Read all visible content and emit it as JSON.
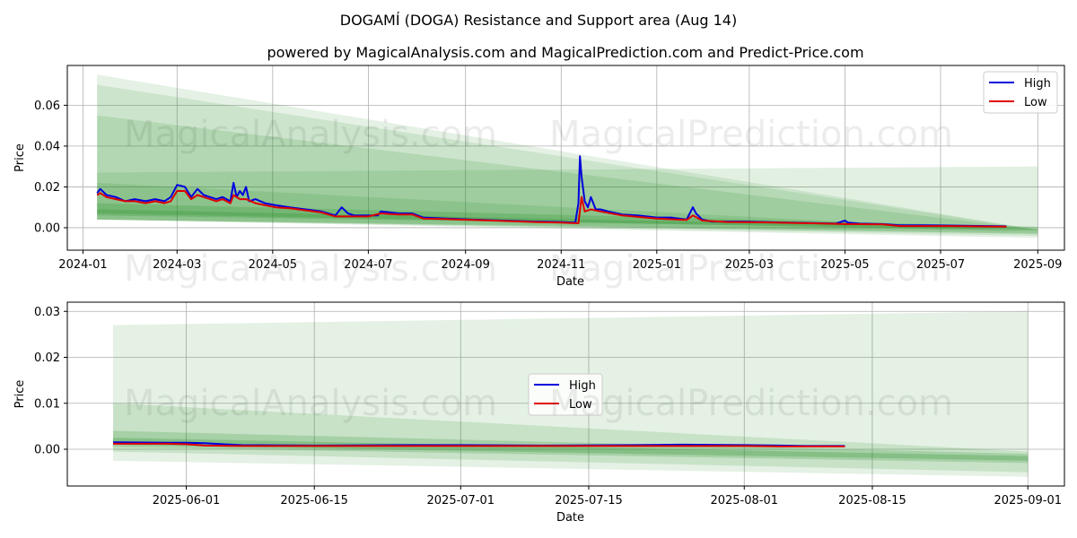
{
  "title": "DOGAMÍ (DOGA) Resistance and Support area (Aug 14)",
  "subtitle": "powered by MagicalAnalysis.com and MagicalPrediction.com and Predict-Price.com",
  "watermarks": [
    "MagicalAnalysis.com",
    "MagicalPrediction.com"
  ],
  "colors": {
    "high": "#0000dd",
    "low": "#dd0000",
    "band": "#228b22",
    "grid": "#b0b0b0"
  },
  "chart_data": [
    {
      "type": "line",
      "xlabel": "Date",
      "ylabel": "Price",
      "xlim": [
        "2023-12-22",
        "2025-09-18"
      ],
      "ylim": [
        -0.011,
        0.0795
      ],
      "grid": true,
      "legend": "top-right",
      "xticks": [
        "2024-01-01",
        "2024-03-01",
        "2024-05-01",
        "2024-07-01",
        "2024-09-01",
        "2024-11-01",
        "2025-01-01",
        "2025-03-01",
        "2025-05-01",
        "2025-07-01",
        "2025-09-01"
      ],
      "xticklabels": [
        "2024-01",
        "2024-03",
        "2024-05",
        "2024-07",
        "2024-09",
        "2024-11",
        "2025-01",
        "2025-03",
        "2025-05",
        "2025-07",
        "2025-09"
      ],
      "yticks": [
        0.0,
        0.02,
        0.04,
        0.06
      ],
      "yticklabels": [
        "0.00",
        "0.02",
        "0.04",
        "0.06"
      ],
      "bands": [
        {
          "x": [
            "2024-01-10",
            "2025-09-01"
          ],
          "upper": [
            0.075,
            -0.001
          ],
          "lower": [
            0.004,
            -0.004
          ],
          "opacity": 0.12
        },
        {
          "x": [
            "2024-01-10",
            "2025-09-01"
          ],
          "upper": [
            0.07,
            -0.001
          ],
          "lower": [
            0.004,
            -0.005
          ],
          "opacity": 0.12
        },
        {
          "x": [
            "2024-01-10",
            "2025-09-01"
          ],
          "upper": [
            0.055,
            -0.001
          ],
          "lower": [
            0.004,
            -0.003
          ],
          "opacity": 0.15
        },
        {
          "x": [
            "2024-01-10",
            "2025-09-01"
          ],
          "upper": [
            0.027,
            0.03
          ],
          "lower": [
            0.004,
            -0.002
          ],
          "opacity": 0.13
        },
        {
          "x": [
            "2024-01-10",
            "2025-09-01"
          ],
          "upper": [
            0.022,
            -0.002
          ],
          "lower": [
            0.004,
            -0.003
          ],
          "opacity": 0.15
        },
        {
          "x": [
            "2024-01-10",
            "2025-09-01"
          ],
          "upper": [
            0.012,
            0.0005
          ],
          "lower": [
            0.006,
            -0.001
          ],
          "opacity": 0.22
        },
        {
          "x": [
            "2024-01-10",
            "2025-09-01"
          ],
          "upper": [
            0.009,
            -0.0005
          ],
          "lower": [
            0.007,
            -0.0015
          ],
          "opacity": 0.25
        }
      ],
      "series": [
        {
          "name": "High",
          "x": [
            "2024-01-10",
            "2024-01-12",
            "2024-01-16",
            "2024-01-22",
            "2024-01-28",
            "2024-02-03",
            "2024-02-10",
            "2024-02-16",
            "2024-02-22",
            "2024-02-26",
            "2024-03-01",
            "2024-03-06",
            "2024-03-10",
            "2024-03-14",
            "2024-03-18",
            "2024-03-22",
            "2024-03-26",
            "2024-03-30",
            "2024-04-04",
            "2024-04-06",
            "2024-04-08",
            "2024-04-10",
            "2024-04-12",
            "2024-04-14",
            "2024-04-16",
            "2024-04-20",
            "2024-04-26",
            "2024-05-03",
            "2024-05-12",
            "2024-05-22",
            "2024-06-01",
            "2024-06-10",
            "2024-06-14",
            "2024-06-18",
            "2024-06-22",
            "2024-07-01",
            "2024-07-07",
            "2024-07-09",
            "2024-07-20",
            "2024-07-29",
            "2024-08-05",
            "2024-08-20",
            "2024-09-05",
            "2024-09-25",
            "2024-10-15",
            "2024-11-01",
            "2024-11-10",
            "2024-11-12",
            "2024-11-13",
            "2024-11-14",
            "2024-11-16",
            "2024-11-18",
            "2024-11-20",
            "2024-11-23",
            "2024-11-26",
            "2024-12-01",
            "2024-12-10",
            "2024-12-20",
            "2025-01-01",
            "2025-01-10",
            "2025-01-20",
            "2025-01-24",
            "2025-01-26",
            "2025-01-30",
            "2025-02-05",
            "2025-02-15",
            "2025-02-25",
            "2025-03-10",
            "2025-03-25",
            "2025-04-10",
            "2025-04-25",
            "2025-05-01",
            "2025-05-03",
            "2025-05-10",
            "2025-05-25",
            "2025-06-05",
            "2025-06-20",
            "2025-07-05",
            "2025-07-20",
            "2025-08-01",
            "2025-08-12"
          ],
          "y": [
            0.017,
            0.019,
            0.016,
            0.015,
            0.013,
            0.014,
            0.013,
            0.014,
            0.013,
            0.015,
            0.021,
            0.02,
            0.015,
            0.019,
            0.016,
            0.015,
            0.014,
            0.015,
            0.013,
            0.022,
            0.015,
            0.018,
            0.016,
            0.02,
            0.013,
            0.014,
            0.012,
            0.011,
            0.01,
            0.009,
            0.008,
            0.006,
            0.01,
            0.007,
            0.006,
            0.006,
            0.006,
            0.008,
            0.007,
            0.007,
            0.005,
            0.0045,
            0.004,
            0.0035,
            0.003,
            0.0028,
            0.0025,
            0.012,
            0.035,
            0.025,
            0.013,
            0.01,
            0.015,
            0.009,
            0.009,
            0.008,
            0.0065,
            0.006,
            0.005,
            0.005,
            0.004,
            0.01,
            0.007,
            0.004,
            0.003,
            0.003,
            0.003,
            0.0028,
            0.0025,
            0.0023,
            0.002,
            0.0035,
            0.0025,
            0.002,
            0.0018,
            0.0012,
            0.0012,
            0.0011,
            0.0009,
            0.0008,
            0.0007
          ]
        },
        {
          "name": "Low",
          "x": [
            "2024-01-10",
            "2024-01-12",
            "2024-01-16",
            "2024-01-22",
            "2024-01-28",
            "2024-02-03",
            "2024-02-10",
            "2024-02-16",
            "2024-02-22",
            "2024-02-26",
            "2024-03-01",
            "2024-03-06",
            "2024-03-10",
            "2024-03-14",
            "2024-03-18",
            "2024-03-22",
            "2024-03-26",
            "2024-03-30",
            "2024-04-04",
            "2024-04-06",
            "2024-04-10",
            "2024-04-14",
            "2024-04-20",
            "2024-04-26",
            "2024-05-03",
            "2024-05-12",
            "2024-05-22",
            "2024-06-01",
            "2024-06-10",
            "2024-06-22",
            "2024-07-01",
            "2024-07-09",
            "2024-07-20",
            "2024-07-29",
            "2024-08-05",
            "2024-08-20",
            "2024-09-05",
            "2024-09-25",
            "2024-10-15",
            "2024-11-01",
            "2024-11-12",
            "2024-11-14",
            "2024-11-16",
            "2024-11-20",
            "2024-11-26",
            "2024-12-10",
            "2025-01-01",
            "2025-01-20",
            "2025-01-24",
            "2025-01-30",
            "2025-02-15",
            "2025-03-10",
            "2025-04-10",
            "2025-05-01",
            "2025-05-25",
            "2025-06-05",
            "2025-06-20",
            "2025-07-05",
            "2025-07-20",
            "2025-08-01",
            "2025-08-12"
          ],
          "y": [
            0.016,
            0.017,
            0.015,
            0.014,
            0.013,
            0.013,
            0.012,
            0.013,
            0.012,
            0.013,
            0.018,
            0.018,
            0.014,
            0.016,
            0.015,
            0.014,
            0.013,
            0.014,
            0.012,
            0.016,
            0.014,
            0.014,
            0.012,
            0.011,
            0.01,
            0.0095,
            0.0085,
            0.0075,
            0.0055,
            0.0055,
            0.0055,
            0.007,
            0.0065,
            0.0065,
            0.0045,
            0.0042,
            0.0038,
            0.0033,
            0.0028,
            0.0025,
            0.0022,
            0.015,
            0.008,
            0.009,
            0.008,
            0.006,
            0.0045,
            0.0038,
            0.006,
            0.0035,
            0.0028,
            0.0026,
            0.0022,
            0.0018,
            0.0016,
            0.0008,
            0.0008,
            0.0008,
            0.0007,
            0.0006,
            0.0005
          ]
        }
      ]
    },
    {
      "type": "line",
      "xlabel": "Date",
      "ylabel": "Price",
      "xlim": [
        "2025-05-19",
        "2025-09-05"
      ],
      "ylim": [
        -0.008,
        0.032
      ],
      "grid": true,
      "legend": "center",
      "xticks": [
        "2025-06-01",
        "2025-06-15",
        "2025-07-01",
        "2025-07-15",
        "2025-08-01",
        "2025-08-15",
        "2025-09-01"
      ],
      "xticklabels": [
        "2025-06-01",
        "2025-06-15",
        "2025-07-01",
        "2025-07-15",
        "2025-08-01",
        "2025-08-15",
        "2025-09-01"
      ],
      "yticks": [
        0.0,
        0.01,
        0.02,
        0.03
      ],
      "yticklabels": [
        "0.00",
        "0.01",
        "0.02",
        "0.03"
      ],
      "bands": [
        {
          "x": [
            "2025-05-24",
            "2025-09-01"
          ],
          "upper": [
            0.027,
            0.03
          ],
          "lower": [
            -0.0025,
            -0.006
          ],
          "opacity": 0.12
        },
        {
          "x": [
            "2025-05-24",
            "2025-09-01"
          ],
          "upper": [
            0.01,
            -0.0005
          ],
          "lower": [
            -0.0005,
            -0.005
          ],
          "opacity": 0.15
        },
        {
          "x": [
            "2025-05-24",
            "2025-09-01"
          ],
          "upper": [
            0.004,
            -0.001
          ],
          "lower": [
            0.0005,
            -0.003
          ],
          "opacity": 0.2
        },
        {
          "x": [
            "2025-05-24",
            "2025-09-01"
          ],
          "upper": [
            0.0025,
            -0.0015
          ],
          "lower": [
            0.001,
            -0.0025
          ],
          "opacity": 0.25
        }
      ],
      "series": [
        {
          "name": "High",
          "x": [
            "2025-05-24",
            "2025-05-30",
            "2025-06-01",
            "2025-06-03",
            "2025-06-07",
            "2025-06-15",
            "2025-06-25",
            "2025-07-01",
            "2025-07-10",
            "2025-07-20",
            "2025-07-25",
            "2025-08-01",
            "2025-08-05",
            "2025-08-08",
            "2025-08-12"
          ],
          "y": [
            0.0015,
            0.0014,
            0.0014,
            0.0013,
            0.0009,
            0.0008,
            0.0009,
            0.0009,
            0.0008,
            0.0009,
            0.001,
            0.0009,
            0.0008,
            0.0007,
            0.0007
          ]
        },
        {
          "name": "Low",
          "x": [
            "2025-05-24",
            "2025-05-30",
            "2025-06-01",
            "2025-06-03",
            "2025-06-07",
            "2025-06-15",
            "2025-06-25",
            "2025-07-01",
            "2025-07-10",
            "2025-07-20",
            "2025-07-25",
            "2025-08-01",
            "2025-08-05",
            "2025-08-08",
            "2025-08-12"
          ],
          "y": [
            0.0012,
            0.0012,
            0.0011,
            0.0008,
            0.0007,
            0.0007,
            0.0007,
            0.0007,
            0.0007,
            0.0007,
            0.0007,
            0.0007,
            0.0006,
            0.0006,
            0.0006
          ]
        }
      ]
    }
  ]
}
